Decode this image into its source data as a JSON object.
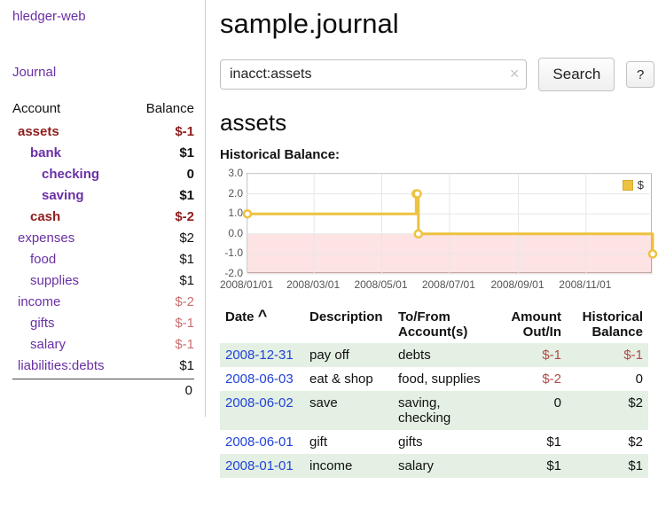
{
  "app_title": "hledger-web",
  "sidebar": {
    "journal_link": "Journal",
    "header": {
      "account": "Account",
      "balance": "Balance"
    },
    "accounts": [
      {
        "name": "assets",
        "balance": "$-1"
      },
      {
        "name": "bank",
        "balance": "$1"
      },
      {
        "name": "checking",
        "balance": "0"
      },
      {
        "name": "saving",
        "balance": "$1"
      },
      {
        "name": "cash",
        "balance": "$-2"
      },
      {
        "name": "expenses",
        "balance": "$2"
      },
      {
        "name": "food",
        "balance": "$1"
      },
      {
        "name": "supplies",
        "balance": "$1"
      },
      {
        "name": "income",
        "balance": "$-2"
      },
      {
        "name": "gifts",
        "balance": "$-1"
      },
      {
        "name": "salary",
        "balance": "$-1"
      },
      {
        "name": "liabilities:debts",
        "balance": "$1"
      }
    ],
    "total": "0"
  },
  "main": {
    "title": "sample.journal",
    "search": {
      "value": "inacct:assets",
      "clear_icon": "×",
      "button_label": "Search",
      "help_label": "?"
    },
    "account_heading": "assets",
    "chart_label": "Historical Balance:"
  },
  "register": {
    "columns": {
      "date": "Date",
      "description": "Description",
      "accounts": "To/From Account(s)",
      "amount": "Amount Out/In",
      "balance": "Historical Balance"
    },
    "sort_indicator": "^",
    "rows": [
      {
        "date": "2008-12-31",
        "description": "pay off",
        "accounts": "debts",
        "amount": "$-1",
        "balance": "$-1"
      },
      {
        "date": "2008-06-03",
        "description": "eat & shop",
        "accounts": "food, supplies",
        "amount": "$-2",
        "balance": "0"
      },
      {
        "date": "2008-06-02",
        "description": "save",
        "accounts": "saving, checking",
        "amount": "0",
        "balance": "$2"
      },
      {
        "date": "2008-06-01",
        "description": "gift",
        "accounts": "gifts",
        "amount": "$1",
        "balance": "$2"
      },
      {
        "date": "2008-01-01",
        "description": "income",
        "accounts": "salary",
        "amount": "$1",
        "balance": "$1"
      }
    ]
  },
  "chart_data": {
    "type": "line",
    "title": "Historical Balance",
    "step": true,
    "color": "#EDC240",
    "series": [
      {
        "name": "$",
        "points": [
          {
            "date": "2008-01-01",
            "value": 1
          },
          {
            "date": "2008-06-01",
            "value": 2
          },
          {
            "date": "2008-06-02",
            "value": 2
          },
          {
            "date": "2008-06-03",
            "value": 0
          },
          {
            "date": "2008-12-31",
            "value": -1
          }
        ]
      }
    ],
    "x_range": [
      "2008-01-01",
      "2008-12-31"
    ],
    "x_ticks": [
      "2008/01/01",
      "2008/03/01",
      "2008/05/01",
      "2008/07/01",
      "2008/09/01",
      "2008/11/01"
    ],
    "y_ticks": [
      3.0,
      2.0,
      1.0,
      0.0,
      -1.0,
      -2.0
    ],
    "ylim": [
      -2,
      3
    ],
    "grid": true,
    "negative_region_shaded": true,
    "legend": {
      "label": "$",
      "position": "top-right"
    }
  },
  "colors": {
    "sidebar_link": "#6A30A5",
    "date_link": "#2243D8",
    "negative_strong": "#8F1D1D",
    "negative_soft": "#C87070",
    "negative_amount": "#B04A48",
    "row_highlight": "#E3F0E3",
    "chart_line": "#EDC240",
    "negative_region": "#F8DCDC"
  }
}
